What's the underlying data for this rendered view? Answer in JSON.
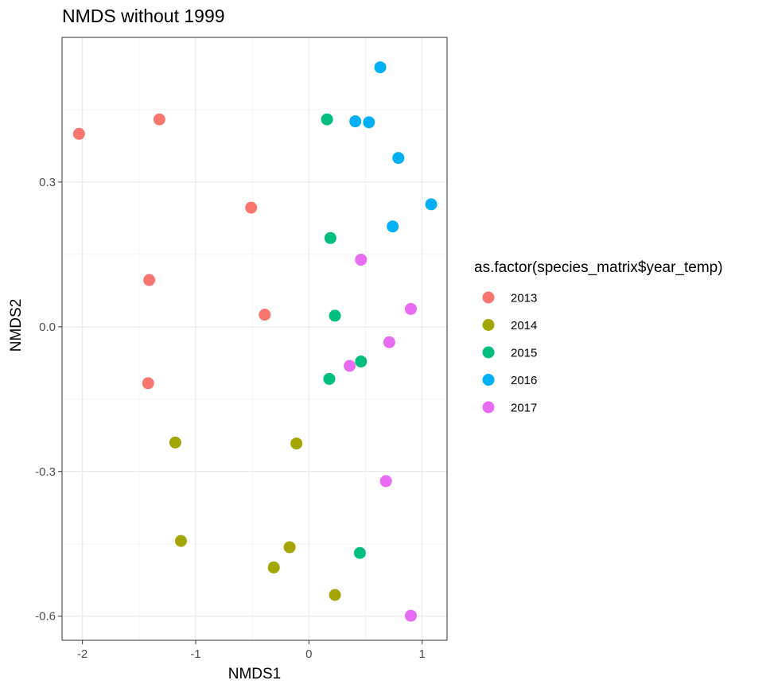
{
  "chart_data": {
    "type": "scatter",
    "title": "NMDS without 1999",
    "xlabel": "NMDS1",
    "ylabel": "NMDS2",
    "xlim": [
      -2.18,
      1.22
    ],
    "ylim": [
      -0.65,
      0.6
    ],
    "x_ticks": [
      -2,
      -1,
      0,
      1
    ],
    "x_tick_labels": [
      "-2",
      "-1",
      "0",
      "1"
    ],
    "y_ticks": [
      0.3,
      0.0,
      -0.3,
      -0.6
    ],
    "y_tick_labels": [
      "0.3",
      "0.0",
      "-0.3",
      "-0.6"
    ],
    "grid": true,
    "legend_title": "as.factor(species_matrix$year_temp)",
    "legend_position": "right",
    "series": [
      {
        "name": "2013",
        "color": "#F8766D",
        "points": [
          {
            "x": -2.03,
            "y": 0.4
          },
          {
            "x": -1.32,
            "y": 0.43
          },
          {
            "x": -0.51,
            "y": 0.247
          },
          {
            "x": -1.41,
            "y": 0.097
          },
          {
            "x": -0.39,
            "y": 0.025
          },
          {
            "x": -1.42,
            "y": -0.117
          }
        ]
      },
      {
        "name": "2014",
        "color": "#A3A500",
        "points": [
          {
            "x": -1.18,
            "y": -0.24
          },
          {
            "x": -0.11,
            "y": -0.242
          },
          {
            "x": -1.13,
            "y": -0.444
          },
          {
            "x": -0.17,
            "y": -0.457
          },
          {
            "x": -0.31,
            "y": -0.499
          },
          {
            "x": 0.23,
            "y": -0.556
          }
        ]
      },
      {
        "name": "2015",
        "color": "#00BF7D",
        "points": [
          {
            "x": 0.16,
            "y": 0.43
          },
          {
            "x": 0.19,
            "y": 0.184
          },
          {
            "x": 0.23,
            "y": 0.023
          },
          {
            "x": 0.46,
            "y": -0.072
          },
          {
            "x": 0.18,
            "y": -0.108
          },
          {
            "x": 0.45,
            "y": -0.469
          }
        ]
      },
      {
        "name": "2016",
        "color": "#00B0F6",
        "points": [
          {
            "x": 0.63,
            "y": 0.538
          },
          {
            "x": 0.41,
            "y": 0.426
          },
          {
            "x": 0.53,
            "y": 0.424
          },
          {
            "x": 0.79,
            "y": 0.35
          },
          {
            "x": 1.08,
            "y": 0.254
          },
          {
            "x": 0.74,
            "y": 0.208
          }
        ]
      },
      {
        "name": "2017",
        "color": "#E76BF3",
        "points": [
          {
            "x": 0.46,
            "y": 0.139
          },
          {
            "x": 0.9,
            "y": 0.037
          },
          {
            "x": 0.71,
            "y": -0.032
          },
          {
            "x": 0.36,
            "y": -0.081
          },
          {
            "x": 0.68,
            "y": -0.32
          },
          {
            "x": 0.9,
            "y": -0.599
          }
        ]
      }
    ]
  }
}
